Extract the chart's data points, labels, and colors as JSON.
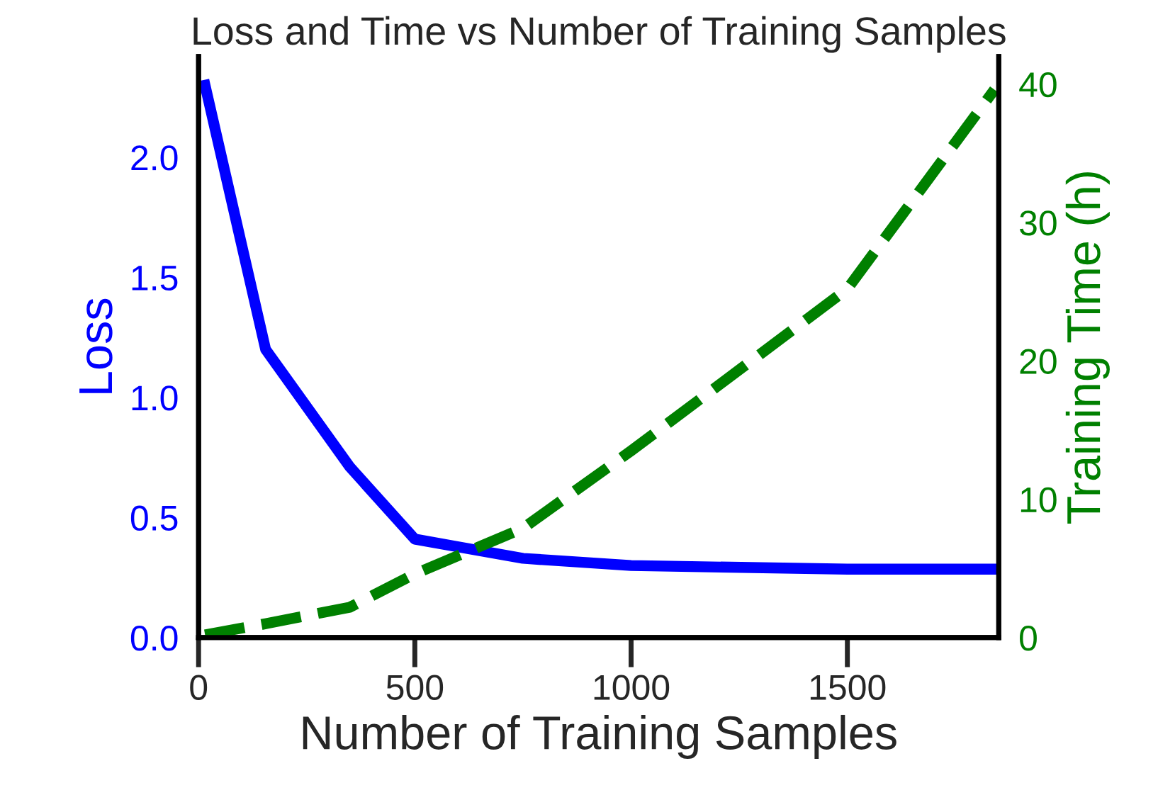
{
  "chart_data": {
    "type": "line",
    "title": "Loss and Time vs Number of Training Samples",
    "xlabel": "Number of Training Samples",
    "ylabel": "Loss",
    "y2label": "Training Time (h)",
    "x": [
      15,
      155,
      350,
      500,
      750,
      1000,
      1500,
      1840
    ],
    "series": [
      {
        "color": "#0000ff",
        "line_style": "solid",
        "values": [
          2.3,
          1.2,
          0.71,
          0.41,
          0.33,
          0.3,
          0.285,
          0.285
        ]
      },
      {
        "color": "#008000",
        "line_style": "dashed",
        "axis": "y2",
        "values": [
          0.2,
          1,
          2.2,
          4.6,
          7.9,
          13.5,
          25.2,
          39.6
        ]
      }
    ],
    "xlim": [
      0,
      1850
    ],
    "xticks": [
      0,
      500,
      1000,
      1500
    ],
    "ylim": [
      0,
      2.42
    ],
    "yticks": [
      {
        "value": 0,
        "label": "0.0"
      },
      {
        "value": 0.5,
        "label": "0.5"
      },
      {
        "value": 1,
        "label": "1.0"
      },
      {
        "value": 1.5,
        "label": "1.5"
      },
      {
        "value": 2,
        "label": "2.0"
      }
    ],
    "y2lim": [
      0,
      42
    ],
    "y2ticks": [
      0,
      10,
      20,
      30,
      40
    ],
    "grid": false,
    "legend": false
  }
}
